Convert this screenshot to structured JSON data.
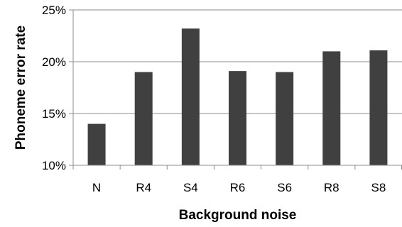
{
  "chart_data": {
    "type": "bar",
    "title": "",
    "xlabel": "Background noise",
    "ylabel": "Phoneme error rate",
    "categories": [
      "N",
      "R4",
      "S4",
      "R6",
      "S6",
      "R8",
      "S8"
    ],
    "values": [
      14.0,
      19.0,
      23.2,
      19.1,
      19.0,
      21.0,
      21.1
    ],
    "ylim": [
      10,
      25
    ],
    "yticks": [
      10,
      15,
      20,
      25
    ],
    "ytick_labels": [
      "10%",
      "15%",
      "20%",
      "25%"
    ],
    "grid": true,
    "bar_color": "#404040",
    "grid_color": "#8c8c8c",
    "axis_color": "#8c8c8c"
  }
}
